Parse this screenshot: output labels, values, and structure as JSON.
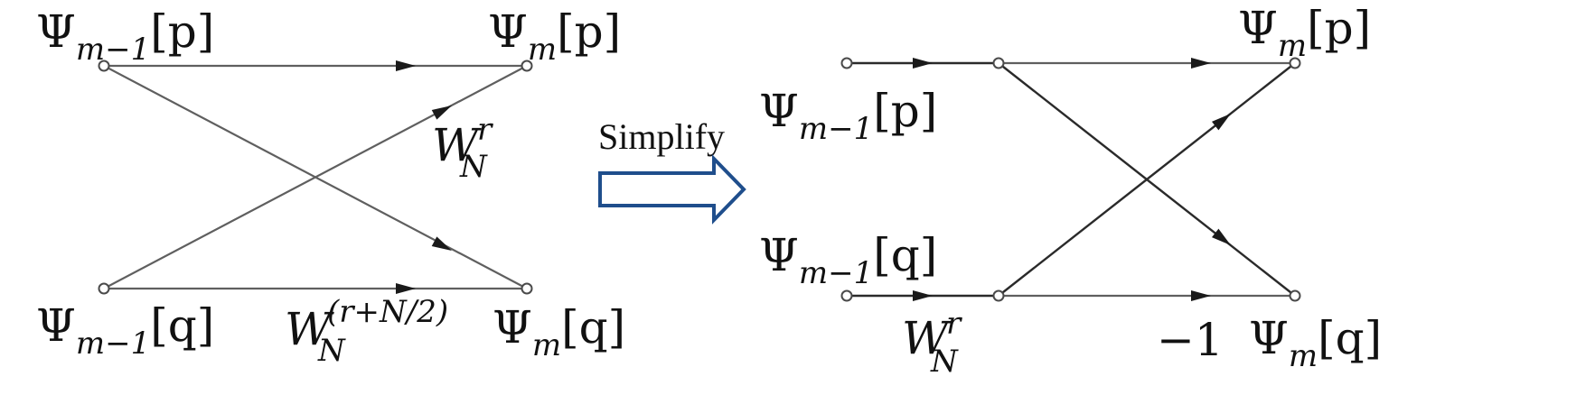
{
  "left_diagram": {
    "top_left": {
      "base": "Ψ",
      "sub": "m−1",
      "arg": "[p]"
    },
    "top_right": {
      "base": "Ψ",
      "sub": "m",
      "arg": "[p]"
    },
    "bottom_left": {
      "base": "Ψ",
      "sub": "m−1",
      "arg": "[q]"
    },
    "bottom_right": {
      "base": "Ψ",
      "sub": "m",
      "arg": "[q]"
    },
    "twiddle_top": {
      "base": "W",
      "sup": "r",
      "sub": "N"
    },
    "twiddle_bottom": {
      "base": "W",
      "sup": "(r+N/2)",
      "sub": "N"
    }
  },
  "transition": {
    "label": "Simplify"
  },
  "right_diagram": {
    "input_top": {
      "base": "Ψ",
      "sub": "m−1",
      "arg": "[p]"
    },
    "input_bottom": {
      "base": "Ψ",
      "sub": "m−1",
      "arg": "[q]"
    },
    "output_top": {
      "base": "Ψ",
      "sub": "m",
      "arg": "[p]"
    },
    "output_bottom": {
      "base": "Ψ",
      "sub": "m",
      "arg": "[q]"
    },
    "twiddle": {
      "base": "W",
      "sup": "r",
      "sub": "N"
    },
    "minus_one": "−1"
  }
}
